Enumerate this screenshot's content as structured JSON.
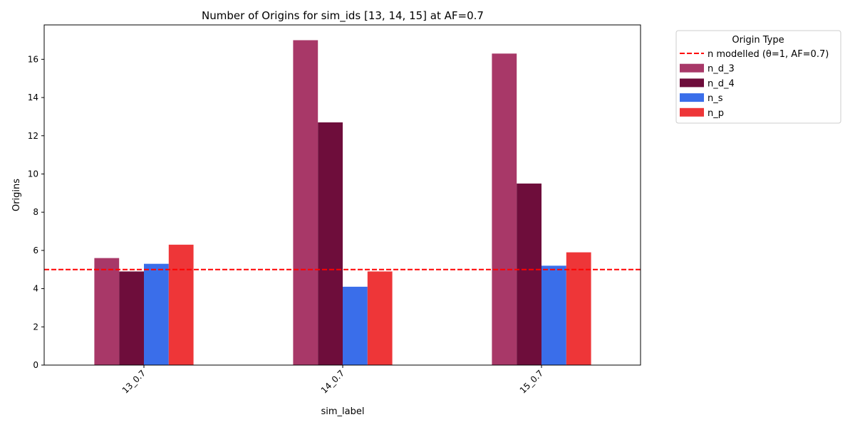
{
  "chart_data": {
    "type": "bar",
    "title": "Number of Origins for sim_ids [13, 14, 15] at AF=0.7",
    "xlabel": "sim_label",
    "ylabel": "Origins",
    "categories": [
      "13_0.7",
      "14_0.7",
      "15_0.7"
    ],
    "ylim": [
      0,
      17.8
    ],
    "yticks": [
      0,
      2,
      4,
      6,
      8,
      10,
      12,
      14,
      16
    ],
    "grid": false,
    "series": [
      {
        "name": "n_d_3",
        "color": "#a83868",
        "values": [
          5.6,
          17.0,
          16.3
        ]
      },
      {
        "name": "n_d_4",
        "color": "#6e0d3b",
        "values": [
          4.9,
          12.7,
          9.5
        ]
      },
      {
        "name": "n_s",
        "color": "#3a6eea",
        "values": [
          5.3,
          4.1,
          5.2
        ]
      },
      {
        "name": "n_p",
        "color": "#ee3638",
        "values": [
          6.3,
          4.9,
          5.9
        ]
      }
    ],
    "reference_line": {
      "label": "n modelled (θ=1, AF=0.7)",
      "value": 5.0,
      "color": "#ff0000",
      "style": "dashed"
    },
    "legend": {
      "title": "Origin Type",
      "placement": "outside-upper-right"
    }
  }
}
